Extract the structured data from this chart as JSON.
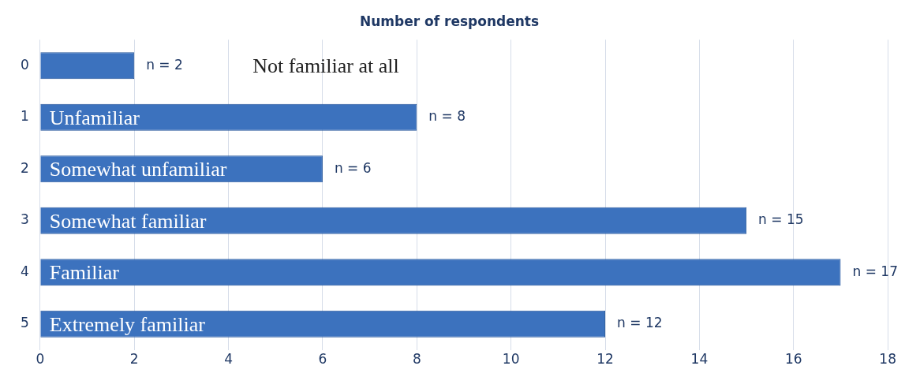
{
  "chart_data": {
    "type": "bar",
    "orientation": "horizontal",
    "title": "Number of respondents",
    "categories": [
      "0",
      "1",
      "2",
      "3",
      "4",
      "5"
    ],
    "values": [
      2,
      8,
      6,
      15,
      17,
      12
    ],
    "value_labels": [
      "n = 2",
      "n = 8",
      "n = 6",
      "n = 15",
      "n = 17",
      "n = 12"
    ],
    "color": "#3c72be",
    "xlim": [
      0,
      18
    ],
    "xticks": [
      0,
      2,
      4,
      6,
      8,
      10,
      12,
      14,
      16,
      18
    ],
    "grid": "x",
    "legend": false,
    "annotations": [
      "Not familiar at all",
      "Unfamiliar",
      "Somewhat unfamiliar",
      "Somewhat familiar",
      "Familiar",
      "Extremely familiar"
    ]
  }
}
